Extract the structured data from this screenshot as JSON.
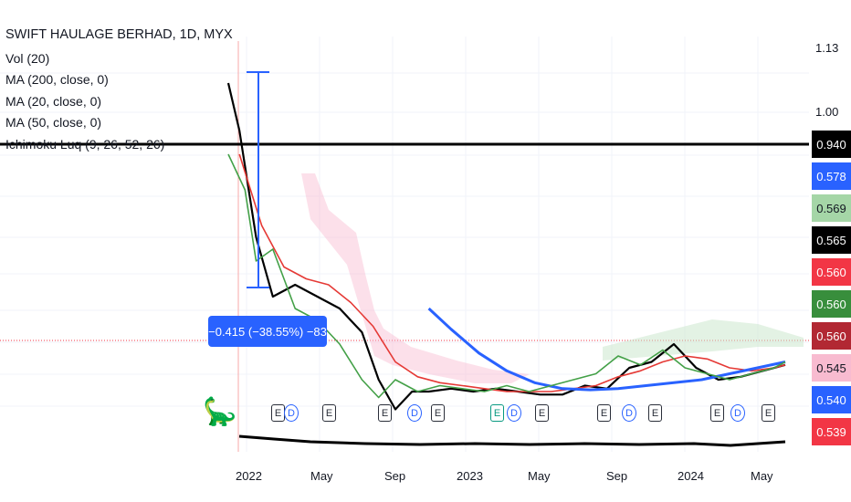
{
  "chart_data": {
    "type": "line",
    "title": "SWIFT HAULAGE BERHAD, 1D, MYX",
    "indicators": [
      "Vol (20)",
      "MA (200, close, 0)",
      "MA (20, close, 0)",
      "MA (50, close, 0)",
      "Ichimoku Luq (9, 26, 52, 26)"
    ],
    "x_tick_labels": [
      "2022",
      "May",
      "Sep",
      "2023",
      "May",
      "Sep",
      "2024",
      "May"
    ],
    "y_tick_labels": [
      "1.13",
      "1.00"
    ],
    "ylim": [
      0.52,
      1.14
    ],
    "horizontal_line": 0.94,
    "price_labels": [
      {
        "value": "0.940",
        "color": "#000000"
      },
      {
        "value": "0.578",
        "color": "#2962ff"
      },
      {
        "value": "0.569",
        "color": "#a5d6a7",
        "text_color": "#131722"
      },
      {
        "value": "0.565",
        "color": "#000000"
      },
      {
        "value": "0.560",
        "color": "#f23645"
      },
      {
        "value": "0.560",
        "color": "#388e3c"
      },
      {
        "value": "0.560",
        "color": "#b22833"
      },
      {
        "value": "0.545",
        "color": "#f8bbd0",
        "text_color": "#131722"
      },
      {
        "value": "0.540",
        "color": "#2962ff"
      },
      {
        "value": "0.539",
        "color": "#f23645"
      }
    ],
    "measure_label": "−0.415 (−38.55%) −83",
    "series": [
      {
        "color": "#000000",
        "x": [
          0,
          0.02,
          0.05,
          0.08,
          0.12,
          0.16,
          0.2,
          0.24,
          0.27,
          0.3,
          0.33,
          0.36,
          0.4,
          0.44,
          0.48,
          0.52,
          0.56,
          0.6,
          0.64,
          0.68,
          0.72,
          0.76,
          0.8,
          0.84,
          0.88,
          0.92,
          0.96,
          1.0
        ],
        "y": [
          1.1,
          1.02,
          0.84,
          0.74,
          0.76,
          0.74,
          0.72,
          0.68,
          0.6,
          0.55,
          0.58,
          0.58,
          0.585,
          0.58,
          0.585,
          0.58,
          0.575,
          0.575,
          0.59,
          0.585,
          0.62,
          0.63,
          0.66,
          0.62,
          0.6,
          0.605,
          0.615,
          0.625
        ]
      },
      {
        "color": "#e53935",
        "x": [
          0.02,
          0.06,
          0.1,
          0.14,
          0.18,
          0.22,
          0.26,
          0.3,
          0.34,
          0.38,
          0.42,
          0.46,
          0.5,
          0.54,
          0.58,
          0.62,
          0.66,
          0.7,
          0.74,
          0.78,
          0.82,
          0.86,
          0.9,
          0.94,
          0.98,
          1.0
        ],
        "y": [
          0.98,
          0.86,
          0.79,
          0.77,
          0.76,
          0.73,
          0.69,
          0.63,
          0.605,
          0.595,
          0.59,
          0.585,
          0.58,
          0.58,
          0.58,
          0.585,
          0.59,
          0.605,
          0.615,
          0.63,
          0.64,
          0.635,
          0.62,
          0.615,
          0.62,
          0.625
        ]
      },
      {
        "color": "#2962ff",
        "x": [
          0.36,
          0.4,
          0.45,
          0.5,
          0.55,
          0.6,
          0.65,
          0.7,
          0.75,
          0.8,
          0.85,
          0.9,
          0.95,
          1.0
        ],
        "y": [
          0.72,
          0.685,
          0.645,
          0.615,
          0.595,
          0.585,
          0.583,
          0.585,
          0.59,
          0.595,
          0.6,
          0.61,
          0.62,
          0.63
        ]
      },
      {
        "color": "#43a047",
        "x": [
          0,
          0.01,
          0.03,
          0.05,
          0.08,
          0.12,
          0.16,
          0.2,
          0.24,
          0.27,
          0.3,
          0.34,
          0.38,
          0.42,
          0.46,
          0.5,
          0.54,
          0.58,
          0.62,
          0.66,
          0.7,
          0.74,
          0.78,
          0.82,
          0.86,
          0.9,
          0.94,
          0.98,
          1.0
        ],
        "y": [
          0.98,
          0.96,
          0.92,
          0.8,
          0.82,
          0.72,
          0.7,
          0.66,
          0.6,
          0.57,
          0.6,
          0.58,
          0.59,
          0.585,
          0.58,
          0.59,
          0.58,
          0.59,
          0.6,
          0.61,
          0.64,
          0.625,
          0.65,
          0.62,
          0.61,
          0.6,
          0.61,
          0.62,
          0.63
        ]
      }
    ],
    "events": [
      {
        "label": "E",
        "kind": "earnings"
      },
      {
        "label": "D",
        "kind": "dividend"
      },
      {
        "label": "E",
        "kind": "earnings"
      },
      {
        "label": "E",
        "kind": "earnings"
      },
      {
        "label": "D",
        "kind": "dividend"
      },
      {
        "label": "E",
        "kind": "earnings"
      },
      {
        "label": "E",
        "kind": "earnings-green"
      },
      {
        "label": "D",
        "kind": "dividend"
      },
      {
        "label": "E",
        "kind": "earnings"
      },
      {
        "label": "E",
        "kind": "earnings"
      },
      {
        "label": "D",
        "kind": "dividend"
      },
      {
        "label": "E",
        "kind": "earnings"
      },
      {
        "label": "E",
        "kind": "earnings"
      },
      {
        "label": "D",
        "kind": "dividend"
      },
      {
        "label": "E",
        "kind": "earnings"
      }
    ]
  }
}
